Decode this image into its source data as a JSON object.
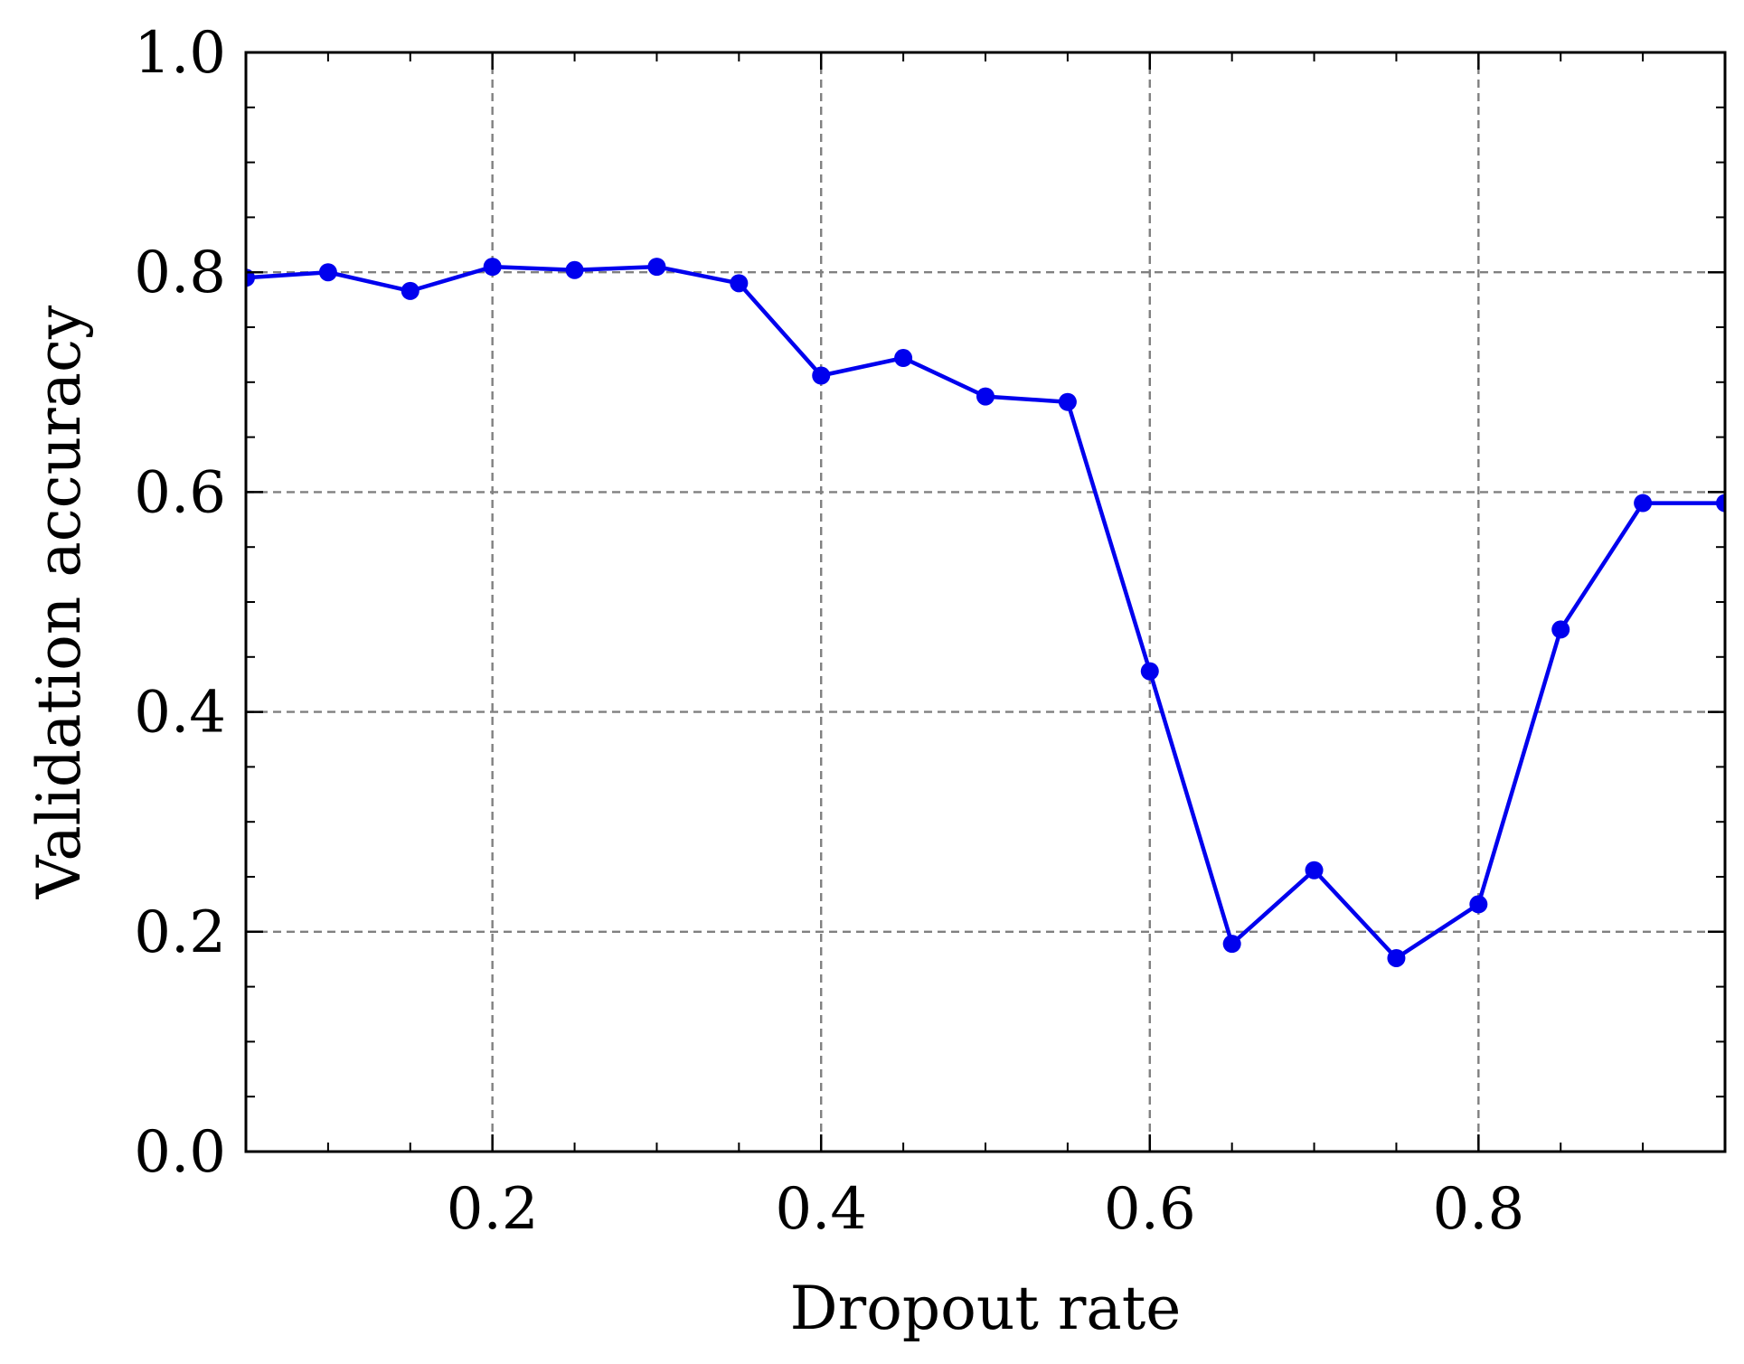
{
  "chart_data": {
    "type": "line",
    "title": "",
    "xlabel": "Dropout rate",
    "ylabel": "Validation accuracy",
    "xlim": [
      0.05,
      0.95
    ],
    "ylim": [
      0.0,
      1.0
    ],
    "xticks": [
      0.2,
      0.4,
      0.6,
      0.8
    ],
    "xtick_labels": [
      "0.2",
      "0.4",
      "0.6",
      "0.8"
    ],
    "yticks": [
      0.0,
      0.2,
      0.4,
      0.6,
      0.8,
      1.0
    ],
    "ytick_labels": [
      "0.0",
      "0.2",
      "0.4",
      "0.6",
      "0.8",
      "1.0"
    ],
    "grid": true,
    "series": [
      {
        "color": "#0000ee",
        "marker": "circle",
        "x": [
          0.05,
          0.1,
          0.15,
          0.2,
          0.25,
          0.3,
          0.35,
          0.4,
          0.45,
          0.5,
          0.55,
          0.6,
          0.65,
          0.7,
          0.75,
          0.8,
          0.85,
          0.9,
          0.95
        ],
        "y": [
          0.795,
          0.8,
          0.783,
          0.805,
          0.802,
          0.805,
          0.79,
          0.706,
          0.722,
          0.687,
          0.682,
          0.437,
          0.189,
          0.256,
          0.176,
          0.225,
          0.475,
          0.59,
          0.59
        ]
      }
    ]
  }
}
